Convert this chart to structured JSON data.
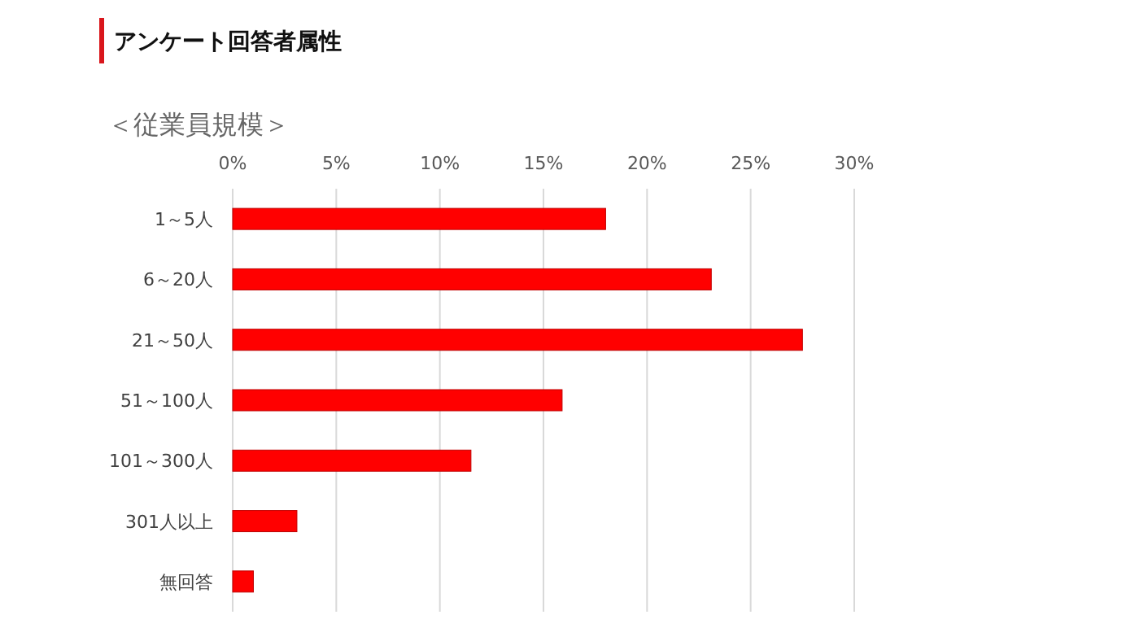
{
  "chart_data": {
    "type": "bar",
    "orientation": "horizontal",
    "title": "アンケート回答者属性",
    "subtitle": "＜従業員規模＞",
    "categories": [
      "1～5人",
      "6～20人",
      "21～50人",
      "51～100人",
      "101～300人",
      "301人以上",
      "無回答"
    ],
    "values": [
      18.0,
      23.1,
      27.5,
      15.9,
      11.5,
      3.1,
      1.0
    ],
    "color": "#ff0000",
    "xlim": [
      0,
      30
    ],
    "xticks": [
      {
        "value": 0,
        "label": "0%"
      },
      {
        "value": 5,
        "label": "5%"
      },
      {
        "value": 10,
        "label": "10%"
      },
      {
        "value": 15,
        "label": "15%"
      },
      {
        "value": 20,
        "label": "20%"
      },
      {
        "value": 25,
        "label": "25%"
      },
      {
        "value": 30,
        "label": "30%"
      }
    ],
    "grid": "x"
  }
}
